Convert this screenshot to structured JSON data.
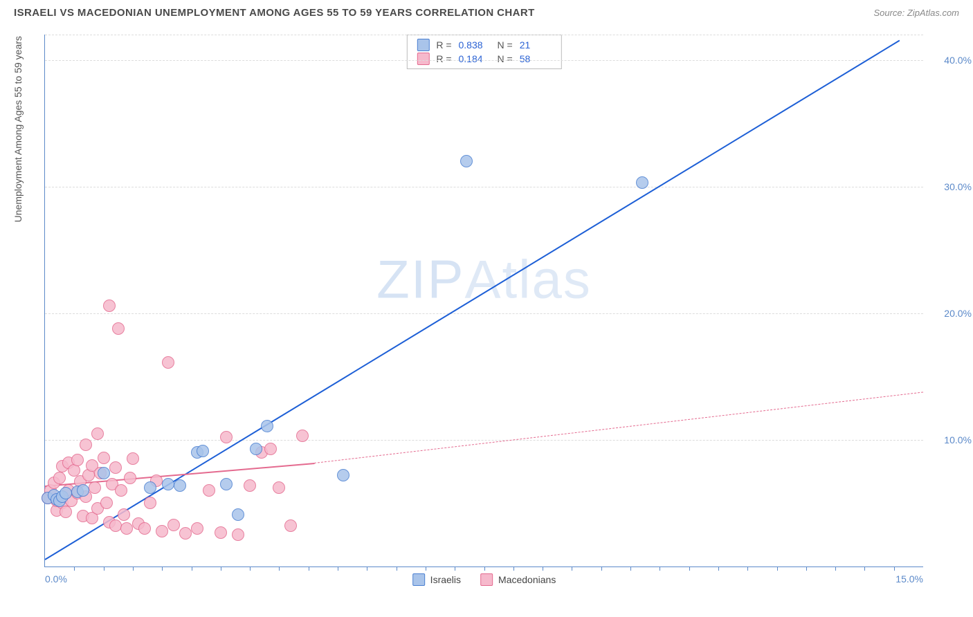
{
  "title": "ISRAELI VS MACEDONIAN UNEMPLOYMENT AMONG AGES 55 TO 59 YEARS CORRELATION CHART",
  "source_label": "Source: ZipAtlas.com",
  "y_axis_label": "Unemployment Among Ages 55 to 59 years",
  "watermark": {
    "bold": "ZIP",
    "thin": "Atlas"
  },
  "chart": {
    "type": "scatter",
    "background_color": "#ffffff",
    "grid_color": "#dcdcdc",
    "axis_color": "#5b89c9",
    "xlim": [
      0,
      15
    ],
    "ylim": [
      0,
      42
    ],
    "x_ticks": [
      0,
      15
    ],
    "x_tick_labels": [
      "0.0%",
      "15.0%"
    ],
    "x_minor_tick_step": 0.5,
    "y_ticks": [
      10,
      20,
      30,
      40
    ],
    "y_tick_labels": [
      "10.0%",
      "20.0%",
      "30.0%",
      "40.0%"
    ],
    "marker_radius": 9,
    "marker_border_width": 1.2,
    "marker_fill_opacity": 0.35,
    "series": [
      {
        "name": "Israelis",
        "color_border": "#4a7fd1",
        "color_fill": "#a9c4ea",
        "R": "0.838",
        "N": "21",
        "trend": {
          "color": "#1d5fd6",
          "width": 2.4,
          "solid_from_x": 0,
          "solid_to_x": 14.6,
          "y_at_x0": 0.6,
          "y_at_xmax": 41.6,
          "style": "solid"
        },
        "points": [
          [
            0.05,
            5.4
          ],
          [
            0.15,
            5.6
          ],
          [
            0.2,
            5.3
          ],
          [
            0.25,
            5.2
          ],
          [
            0.3,
            5.5
          ],
          [
            0.35,
            5.8
          ],
          [
            0.55,
            5.9
          ],
          [
            0.65,
            6.0
          ],
          [
            1.0,
            7.4
          ],
          [
            1.8,
            6.2
          ],
          [
            2.1,
            6.5
          ],
          [
            2.3,
            6.4
          ],
          [
            2.6,
            9.0
          ],
          [
            2.7,
            9.1
          ],
          [
            3.1,
            6.5
          ],
          [
            3.3,
            4.1
          ],
          [
            3.6,
            9.3
          ],
          [
            3.8,
            11.1
          ],
          [
            5.1,
            7.2
          ],
          [
            7.2,
            32.0
          ],
          [
            10.2,
            30.3
          ]
        ]
      },
      {
        "name": "Macedonians",
        "color_border": "#e46a8f",
        "color_fill": "#f6b9cc",
        "R": "0.184",
        "N": "58",
        "trend": {
          "color": "#e46a8f",
          "width": 2.2,
          "solid_from_x": 0,
          "solid_to_x": 4.6,
          "dash_to_x": 15,
          "y_at_x0": 6.4,
          "y_at_solid_end": 8.2,
          "y_at_xmax": 13.8
        },
        "points": [
          [
            0.05,
            5.4
          ],
          [
            0.1,
            6.0
          ],
          [
            0.15,
            6.6
          ],
          [
            0.2,
            4.4
          ],
          [
            0.2,
            5.2
          ],
          [
            0.25,
            7.0
          ],
          [
            0.3,
            7.9
          ],
          [
            0.3,
            5.0
          ],
          [
            0.35,
            4.3
          ],
          [
            0.4,
            8.2
          ],
          [
            0.4,
            6.0
          ],
          [
            0.45,
            5.2
          ],
          [
            0.5,
            7.6
          ],
          [
            0.55,
            8.4
          ],
          [
            0.55,
            5.8
          ],
          [
            0.6,
            6.7
          ],
          [
            0.65,
            4.0
          ],
          [
            0.7,
            9.6
          ],
          [
            0.7,
            5.5
          ],
          [
            0.75,
            7.2
          ],
          [
            0.8,
            8.0
          ],
          [
            0.8,
            3.8
          ],
          [
            0.85,
            6.2
          ],
          [
            0.9,
            10.5
          ],
          [
            0.9,
            4.6
          ],
          [
            0.95,
            7.4
          ],
          [
            1.0,
            8.6
          ],
          [
            1.05,
            5.0
          ],
          [
            1.1,
            3.5
          ],
          [
            1.1,
            20.6
          ],
          [
            1.15,
            6.5
          ],
          [
            1.2,
            3.2
          ],
          [
            1.2,
            7.8
          ],
          [
            1.25,
            18.8
          ],
          [
            1.3,
            6.0
          ],
          [
            1.35,
            4.1
          ],
          [
            1.4,
            3.0
          ],
          [
            1.45,
            7.0
          ],
          [
            1.5,
            8.5
          ],
          [
            1.6,
            3.4
          ],
          [
            1.7,
            3.0
          ],
          [
            1.8,
            5.0
          ],
          [
            1.9,
            6.8
          ],
          [
            2.0,
            2.8
          ],
          [
            2.1,
            16.1
          ],
          [
            2.2,
            3.3
          ],
          [
            2.4,
            2.6
          ],
          [
            2.6,
            3.0
          ],
          [
            2.8,
            6.0
          ],
          [
            3.0,
            2.7
          ],
          [
            3.1,
            10.2
          ],
          [
            3.3,
            2.5
          ],
          [
            3.5,
            6.4
          ],
          [
            3.7,
            9.0
          ],
          [
            3.85,
            9.3
          ],
          [
            4.0,
            6.2
          ],
          [
            4.2,
            3.2
          ],
          [
            4.4,
            10.3
          ]
        ]
      }
    ]
  },
  "legend_top_header": {
    "R_label": "R =",
    "N_label": "N ="
  },
  "legend_bottom": [
    "Israelis",
    "Macedonians"
  ]
}
